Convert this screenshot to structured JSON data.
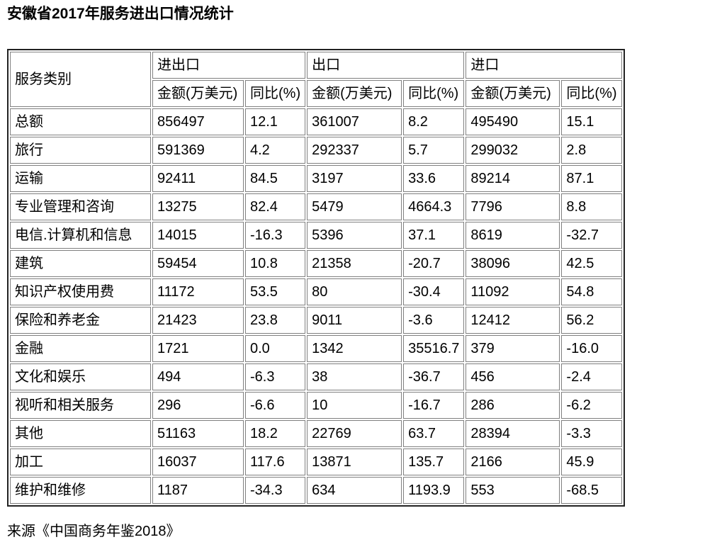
{
  "page": {
    "title": "安徽省2017年服务进出口情况统计",
    "source": "来源《中国商务年鉴2018》"
  },
  "colors": {
    "background": "#ffffff",
    "text": "#000000",
    "cell_border": "#808080",
    "table_border": "#222222"
  },
  "chart_data": {
    "type": "table",
    "title": "安徽省2017年服务进出口情况统计",
    "corner_header": "服务类别",
    "column_groups": [
      "进出口",
      "出口",
      "进口"
    ],
    "sub_headers": [
      "金额(万美元)",
      "同比(%)",
      "金额(万美元)",
      "同比(%)",
      "金额(万美元)",
      "同比(%)"
    ],
    "rows": [
      {
        "category": "总额",
        "values": [
          "856497",
          "12.1",
          "361007",
          "8.2",
          "495490",
          "15.1"
        ]
      },
      {
        "category": "旅行",
        "values": [
          "591369",
          "4.2",
          "292337",
          "5.7",
          "299032",
          "2.8"
        ]
      },
      {
        "category": "运输",
        "values": [
          "92411",
          "84.5",
          "3197",
          "33.6",
          "89214",
          "87.1"
        ]
      },
      {
        "category": "专业管理和咨询",
        "values": [
          "13275",
          "82.4",
          "5479",
          "4664.3",
          "7796",
          "8.8"
        ]
      },
      {
        "category": "电信.计算机和信息",
        "values": [
          "14015",
          "-16.3",
          "5396",
          "37.1",
          "8619",
          "-32.7"
        ]
      },
      {
        "category": "建筑",
        "values": [
          "59454",
          "10.8",
          "21358",
          "-20.7",
          "38096",
          "42.5"
        ]
      },
      {
        "category": "知识产权使用费",
        "values": [
          "11172",
          "53.5",
          "80",
          "-30.4",
          "11092",
          "54.8"
        ]
      },
      {
        "category": "保险和养老金",
        "values": [
          "21423",
          "23.8",
          "9011",
          "-3.6",
          "12412",
          "56.2"
        ]
      },
      {
        "category": "金融",
        "values": [
          "1721",
          "0.0",
          "1342",
          "35516.7",
          "379",
          "-16.0"
        ]
      },
      {
        "category": "文化和娱乐",
        "values": [
          "494",
          "-6.3",
          "38",
          "-36.7",
          "456",
          "-2.4"
        ]
      },
      {
        "category": "视听和相关服务",
        "values": [
          "296",
          "-6.6",
          "10",
          "-16.7",
          "286",
          "-6.2"
        ]
      },
      {
        "category": "其他",
        "values": [
          "51163",
          "18.2",
          "22769",
          "63.7",
          "28394",
          "-3.3"
        ]
      },
      {
        "category": "加工",
        "values": [
          "16037",
          "117.6",
          "13871",
          "135.7",
          "2166",
          "45.9"
        ]
      },
      {
        "category": "维护和维修",
        "values": [
          "1187",
          "-34.3",
          "634",
          "1193.9",
          "553",
          "-68.5"
        ]
      }
    ],
    "source": "来源《中国商务年鉴2018》"
  }
}
